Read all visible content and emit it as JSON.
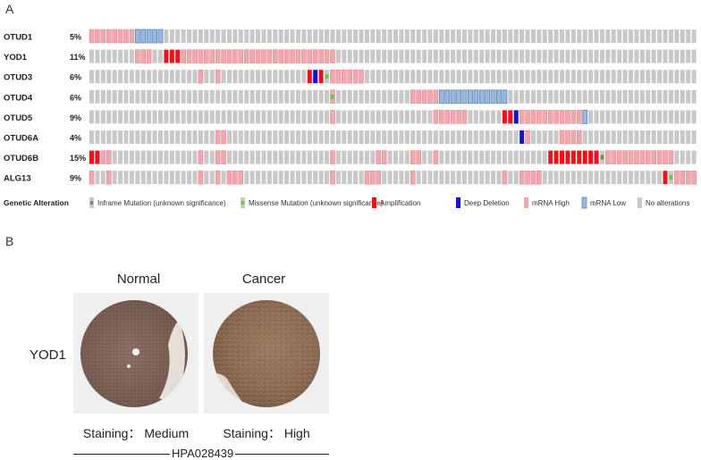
{
  "panel_a": {
    "letter": "A",
    "genes": [
      {
        "name": "OTUD1",
        "pct": "5%"
      },
      {
        "name": "YOD1",
        "pct": "11%"
      },
      {
        "name": "OTUD3",
        "pct": "6%"
      },
      {
        "name": "OTUD4",
        "pct": "6%"
      },
      {
        "name": "OTUD5",
        "pct": "9%"
      },
      {
        "name": "OTUD6A",
        "pct": "4%"
      },
      {
        "name": "OTUD6B",
        "pct": "15%"
      },
      {
        "name": "ALG13",
        "pct": "9%"
      }
    ],
    "total_samples": 96,
    "alterations": [
      {
        "start": 0,
        "len": 8,
        "type": "mrna_high"
      },
      {
        "start": 8,
        "len": 5,
        "type": "mrna_low"
      },
      {
        "start": 8,
        "len": 3,
        "type": "mrna_high"
      },
      {
        "start": 13,
        "len": 3,
        "type": "amplification"
      },
      {
        "start": 16,
        "len": 27,
        "type": "mrna_high"
      },
      {
        "start": 19,
        "len": 1,
        "type": "mrna_high"
      },
      {
        "start": 22,
        "len": 1,
        "type": "mrna_high"
      },
      {
        "start": 38,
        "len": 1,
        "type": "amplification"
      },
      {
        "start": 39,
        "len": 1,
        "type": "deep_deletion"
      },
      {
        "start": 40,
        "len": 1,
        "type": "amplification"
      },
      {
        "start": 41,
        "len": 1,
        "type": "missense"
      },
      {
        "start": 42,
        "len": 6,
        "type": "mrna_high"
      },
      {
        "start": 42,
        "len": 1,
        "type": "missense"
      },
      {
        "start": 42,
        "len": 1,
        "type": "mrna_high"
      },
      {
        "start": 56,
        "len": 5,
        "type": "mrna_high"
      },
      {
        "start": 61,
        "len": 12,
        "type": "mrna_low"
      },
      {
        "start": 60,
        "len": 6,
        "type": "mrna_high"
      },
      {
        "start": 72,
        "len": 2,
        "type": "amplification"
      },
      {
        "start": 74,
        "len": 1,
        "type": "deep_deletion"
      },
      {
        "start": 75,
        "len": 12,
        "type": "mrna_high"
      },
      {
        "start": 86,
        "len": 1,
        "type": "mrna_low"
      },
      {
        "start": 22,
        "len": 2,
        "type": "mrna_high"
      },
      {
        "start": 75,
        "len": 1,
        "type": "deep_deletion"
      },
      {
        "start": 76,
        "len": 1,
        "type": "mrna_high"
      },
      {
        "start": 82,
        "len": 4,
        "type": "mrna_high"
      },
      {
        "start": 0,
        "len": 2,
        "type": "amplification"
      },
      {
        "start": 2,
        "len": 2,
        "type": "mrna_high"
      },
      {
        "start": 80,
        "len": 9,
        "type": "amplification"
      },
      {
        "start": 89,
        "len": 1,
        "type": "inframe"
      },
      {
        "start": 90,
        "len": 12,
        "type": "mrna_high"
      },
      {
        "start": 100,
        "len": 1,
        "type": "amplification"
      },
      {
        "start": 101,
        "len": 1,
        "type": "missense"
      },
      {
        "start": 102,
        "len": 4,
        "type": "mrna_high"
      }
    ],
    "legend_title": "Genetic Alteration",
    "legend": [
      {
        "key": "inframe",
        "label": "Inframe Mutation (unknown significance)"
      },
      {
        "key": "missense",
        "label": "Missense Mutation (unknown significance)"
      },
      {
        "key": "amplification",
        "label": "Amplification"
      },
      {
        "key": "deep_deletion",
        "label": "Deep Deletion"
      },
      {
        "key": "mrna_high",
        "label": "mRNA High"
      },
      {
        "key": "mrna_low",
        "label": "mRNA Low"
      },
      {
        "key": "none",
        "label": "No alterations"
      }
    ],
    "colors": {
      "none": "#c8c8c8",
      "mrna_high": "#f0a8ae",
      "mrna_low": "#9bb8dc",
      "amplification": "#e8141c",
      "deep_deletion": "#1414cc",
      "missense": "#60cc3c",
      "inframe": "#a07840"
    }
  },
  "panel_b": {
    "letter": "B",
    "gene": "YOD1",
    "normal_title": "Normal",
    "cancer_title": "Cancer",
    "normal_staining": "Staining： Medium",
    "cancer_staining": "Staining： High",
    "antibody": "HPA028439"
  }
}
